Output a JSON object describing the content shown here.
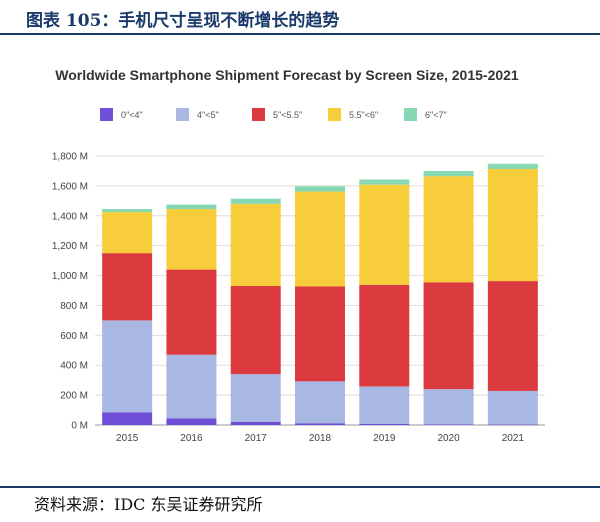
{
  "header": {
    "figure_title": "图表 105：手机尺寸呈现不断增长的趋势"
  },
  "footer": {
    "source": "资料来源：IDC 东吴证券研究所"
  },
  "colors": {
    "s0": "#6f4fd8",
    "s1": "#a8b8e2",
    "s2": "#db3a3f",
    "s3": "#f7cd3c",
    "s4": "#86d9b2"
  },
  "chart_data": {
    "type": "bar",
    "stacked": true,
    "title": "Worldwide Smartphone Shipment Forecast by Screen Size, 2015-2021",
    "xlabel": "",
    "ylabel": "",
    "categories": [
      "2015",
      "2016",
      "2017",
      "2018",
      "2019",
      "2020",
      "2021"
    ],
    "ylim": [
      0,
      1800
    ],
    "yticks": [
      0,
      200,
      400,
      600,
      800,
      1000,
      1200,
      1400,
      1600,
      1800
    ],
    "ytick_labels": [
      "0 M",
      "200 M",
      "400 M",
      "600 M",
      "800 M",
      "1,000 M",
      "1,200 M",
      "1,400 M",
      "1,600 M",
      "1,800 M"
    ],
    "legend_position": "top",
    "grid": true,
    "series": [
      {
        "name": "0\"<4\"",
        "values": [
          85,
          45,
          20,
          12,
          8,
          5,
          3
        ]
      },
      {
        "name": "4\"<5\"",
        "values": [
          615,
          425,
          320,
          280,
          250,
          235,
          225
        ]
      },
      {
        "name": "5\"<5.5\"",
        "values": [
          450,
          570,
          590,
          635,
          680,
          715,
          735
        ]
      },
      {
        "name": "5.5\"<6\"",
        "values": [
          275,
          405,
          550,
          635,
          670,
          710,
          750
        ]
      },
      {
        "name": "6\"<7\"",
        "values": [
          20,
          30,
          35,
          35,
          35,
          35,
          35
        ]
      }
    ]
  }
}
